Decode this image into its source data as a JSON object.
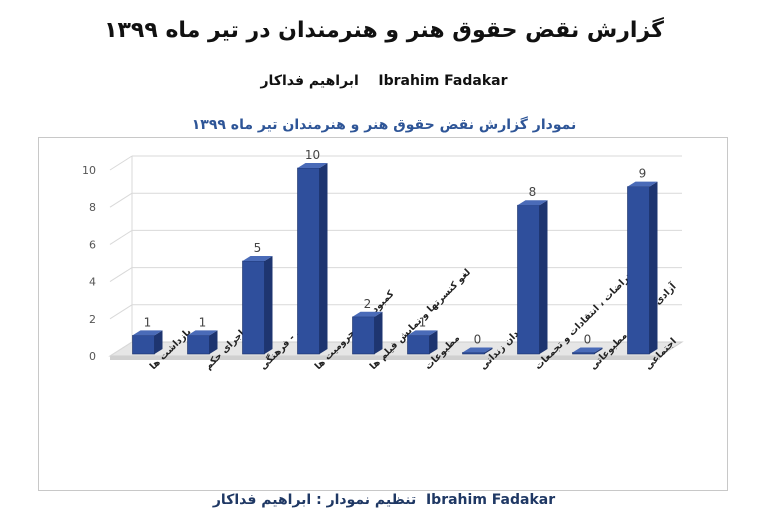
{
  "header": {
    "title": "گزارش نقض حقوق هنر و هنرمندان در تیر ماه ۱۳۹۹",
    "author_fa": "ابراهیم فداکار",
    "author_en": "Ibrahim Fadakar"
  },
  "footer": {
    "label": "تنظیم نمودار : ابراهیم فداکار",
    "name_en": "Ibrahim Fadakar"
  },
  "chart_data": {
    "type": "bar",
    "title": "نمودار گزارش نقض حقوق هنر و هنرمندان تیر ماه ۱۳۹۹",
    "categories": [
      "بازداشت ها",
      "صدور اجرای حکم",
      "علمی - فرهنگی",
      "کمبودها و محرومیت ها",
      "لغو کنسرتها و نمایش فیلم ها",
      "مطبوعات",
      "هنرمندان زندانی",
      "اعتراضات ، انتقادات و تجمعات",
      "آزادی زندانیان مطبوعاتی",
      "اجتماعی"
    ],
    "values": [
      1,
      1,
      5,
      10,
      2,
      1,
      0,
      8,
      0,
      9
    ],
    "ylim": [
      0,
      10
    ],
    "yticks": [
      0,
      2,
      4,
      6,
      8,
      10
    ],
    "grid": true,
    "bar_color": "#2f4f9c",
    "bar_side_color": "#1e3570",
    "bar_top_color": "#4a6bb8"
  }
}
